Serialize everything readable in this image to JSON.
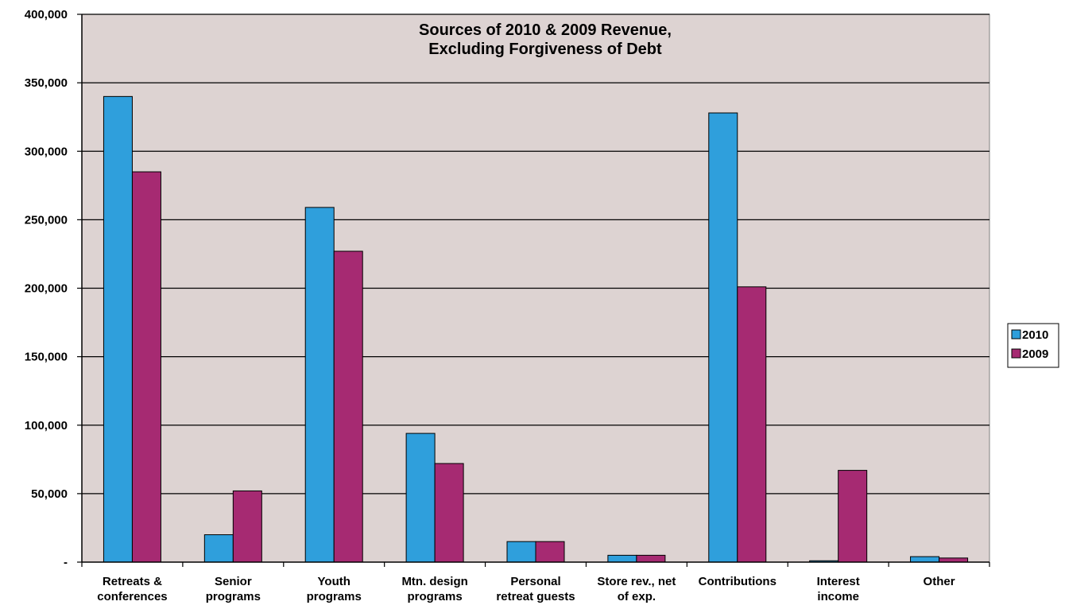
{
  "chart_data": {
    "type": "bar",
    "title": [
      "Sources of 2010 & 2009 Revenue,",
      "Excluding Forgiveness of Debt"
    ],
    "xlabel": "",
    "ylabel": "",
    "ylim": [
      0,
      400000
    ],
    "y_ticks": [
      0,
      50000,
      100000,
      150000,
      200000,
      250000,
      300000,
      350000,
      400000
    ],
    "y_tick_labels": [
      "-",
      "50,000",
      "100,000",
      "150,000",
      "200,000",
      "250,000",
      "300,000",
      "350,000",
      "400,000"
    ],
    "categories": [
      [
        "Retreats &",
        "conferences"
      ],
      [
        "Senior",
        "programs"
      ],
      [
        "Youth",
        "programs"
      ],
      [
        "Mtn. design",
        "programs"
      ],
      [
        "Personal",
        "retreat guests"
      ],
      [
        "Store rev., net",
        "of exp."
      ],
      [
        "Contributions"
      ],
      [
        "Interest",
        "income"
      ],
      [
        "Other"
      ]
    ],
    "series": [
      {
        "name": "2010",
        "color": "#2f9fdc",
        "values": [
          340000,
          20000,
          259000,
          94000,
          15000,
          5000,
          328000,
          1000,
          4000
        ]
      },
      {
        "name": "2009",
        "color": "#a62a72",
        "values": [
          285000,
          52000,
          227000,
          72000,
          15000,
          5000,
          201000,
          67000,
          3000
        ]
      }
    ],
    "grid": true,
    "legend_position": "right",
    "plot_background": "#ddd3d2"
  }
}
